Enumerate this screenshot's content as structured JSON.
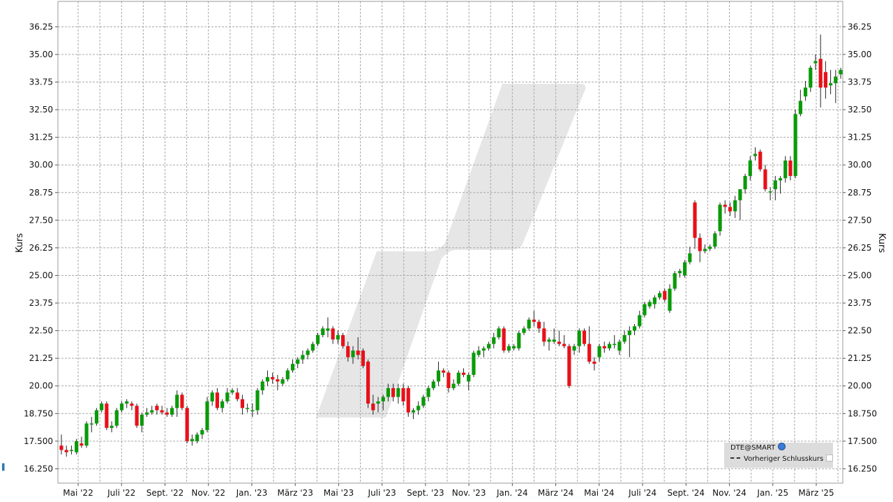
{
  "chart_data": {
    "type": "candlestick",
    "title": "",
    "ylabel": "Kurs",
    "ylabel_right": "Kurs",
    "ylim": [
      15.6,
      37.4
    ],
    "yticks": [
      "16.250",
      "17.500",
      "18.750",
      "20.00",
      "21.25",
      "22.50",
      "23.75",
      "25.00",
      "26.25",
      "27.50",
      "28.75",
      "30.00",
      "31.25",
      "32.50",
      "33.75",
      "35.00",
      "36.25"
    ],
    "xtick_labels": [
      "Mai '22",
      "Juli '22",
      "Sept. '22",
      "Nov. '22",
      "Jan. '23",
      "März '23",
      "Mai '23",
      "Juli '23",
      "Sept. '23",
      "Nov. '23",
      "Jan. '24",
      "März '24",
      "Mai '24",
      "Juli '24",
      "Sept. '24",
      "Nov. '24",
      "Jan. '25",
      "März '25"
    ],
    "grid": true,
    "colors": {
      "up": "#0a9a0a",
      "down": "#e8101a",
      "wick": "#222222",
      "grid": "#a8a8a8"
    },
    "legend": {
      "position": "bottom-right",
      "symbol": "DTE@SMART",
      "previous_close": "Vorheriger Schlusskurs"
    },
    "ohlc": [
      [
        17.3,
        17.8,
        16.9,
        17.1
      ],
      [
        17.1,
        17.3,
        16.8,
        17.0
      ],
      [
        17.1,
        17.3,
        16.9,
        17.1
      ],
      [
        17.0,
        17.6,
        16.9,
        17.5
      ],
      [
        17.4,
        17.7,
        17.2,
        17.3
      ],
      [
        17.3,
        18.4,
        17.2,
        18.3
      ],
      [
        18.3,
        18.6,
        17.9,
        18.3
      ],
      [
        18.3,
        19.0,
        18.2,
        18.9
      ],
      [
        18.9,
        19.3,
        18.8,
        19.2
      ],
      [
        19.2,
        19.3,
        18.0,
        18.1
      ],
      [
        18.1,
        18.4,
        17.9,
        18.2
      ],
      [
        18.2,
        19.0,
        18.1,
        18.9
      ],
      [
        18.9,
        19.3,
        18.8,
        19.2
      ],
      [
        19.2,
        19.4,
        19.0,
        19.3
      ],
      [
        19.2,
        19.3,
        18.9,
        19.1
      ],
      [
        19.1,
        19.2,
        18.1,
        18.2
      ],
      [
        18.2,
        18.8,
        17.9,
        18.7
      ],
      [
        18.7,
        19.0,
        18.6,
        18.8
      ],
      [
        18.8,
        19.1,
        18.7,
        18.9
      ],
      [
        19.1,
        19.2,
        18.7,
        18.9
      ],
      [
        18.9,
        19.1,
        18.7,
        18.8
      ],
      [
        18.8,
        19.0,
        18.6,
        18.7
      ],
      [
        18.7,
        19.1,
        18.6,
        19.0
      ],
      [
        19.0,
        19.8,
        18.6,
        19.6
      ],
      [
        19.6,
        19.7,
        18.9,
        19.0
      ],
      [
        19.0,
        19.1,
        17.4,
        17.5
      ],
      [
        17.5,
        17.8,
        17.3,
        17.6
      ],
      [
        17.5,
        17.9,
        17.4,
        17.8
      ],
      [
        17.8,
        18.1,
        17.6,
        18.0
      ],
      [
        18.0,
        19.5,
        17.9,
        19.3
      ],
      [
        19.3,
        19.8,
        19.1,
        19.7
      ],
      [
        19.7,
        19.9,
        18.9,
        19.0
      ],
      [
        19.0,
        19.4,
        18.8,
        19.3
      ],
      [
        19.3,
        19.9,
        19.2,
        19.7
      ],
      [
        19.7,
        19.9,
        19.6,
        19.8
      ],
      [
        19.7,
        19.9,
        19.3,
        19.4
      ],
      [
        19.4,
        19.6,
        18.7,
        19.0
      ],
      [
        19.0,
        19.2,
        18.8,
        19.0
      ],
      [
        18.9,
        19.2,
        18.6,
        18.9
      ],
      [
        18.9,
        19.9,
        18.7,
        19.8
      ],
      [
        19.8,
        20.3,
        19.6,
        20.2
      ],
      [
        20.2,
        20.7,
        20.0,
        20.4
      ],
      [
        20.4,
        20.6,
        20.1,
        20.3
      ],
      [
        20.3,
        20.5,
        19.8,
        20.2
      ],
      [
        20.1,
        20.4,
        20.0,
        20.3
      ],
      [
        20.3,
        20.8,
        20.2,
        20.7
      ],
      [
        20.7,
        21.2,
        20.6,
        21.0
      ],
      [
        21.0,
        21.3,
        20.8,
        21.2
      ],
      [
        21.2,
        21.6,
        21.0,
        21.4
      ],
      [
        21.4,
        21.7,
        21.2,
        21.6
      ],
      [
        21.6,
        22.0,
        21.5,
        21.9
      ],
      [
        21.9,
        22.4,
        21.8,
        22.3
      ],
      [
        22.3,
        22.7,
        22.2,
        22.6
      ],
      [
        22.5,
        23.1,
        22.2,
        22.6
      ],
      [
        22.6,
        22.7,
        21.9,
        22.1
      ],
      [
        22.1,
        22.5,
        21.9,
        22.3
      ],
      [
        22.3,
        22.4,
        21.7,
        21.8
      ],
      [
        21.8,
        22.0,
        21.1,
        21.3
      ],
      [
        21.3,
        21.8,
        21.0,
        21.6
      ],
      [
        21.6,
        22.2,
        21.2,
        21.4
      ],
      [
        21.6,
        21.7,
        20.8,
        20.9
      ],
      [
        21.1,
        21.2,
        19.0,
        19.2
      ],
      [
        19.2,
        19.6,
        18.7,
        18.9
      ],
      [
        19.2,
        19.5,
        18.8,
        19.3
      ],
      [
        19.3,
        19.6,
        18.9,
        19.5
      ],
      [
        19.5,
        20.1,
        19.3,
        19.9
      ],
      [
        19.9,
        20.1,
        19.3,
        19.5
      ],
      [
        19.5,
        20.1,
        19.2,
        19.9
      ],
      [
        19.9,
        20.1,
        19.1,
        19.3
      ],
      [
        19.9,
        20.0,
        18.6,
        18.8
      ],
      [
        18.8,
        19.0,
        18.5,
        18.9
      ],
      [
        18.9,
        19.3,
        18.7,
        19.1
      ],
      [
        19.1,
        19.6,
        19.0,
        19.5
      ],
      [
        19.5,
        20.0,
        19.3,
        19.9
      ],
      [
        19.9,
        20.3,
        19.8,
        20.2
      ],
      [
        20.2,
        21.1,
        20.0,
        20.7
      ],
      [
        20.7,
        20.8,
        20.4,
        20.6
      ],
      [
        20.6,
        20.7,
        19.7,
        19.9
      ],
      [
        19.9,
        20.3,
        19.8,
        20.1
      ],
      [
        20.1,
        20.7,
        20.0,
        20.6
      ],
      [
        20.6,
        20.8,
        20.4,
        20.5
      ],
      [
        20.2,
        20.6,
        19.8,
        20.5
      ],
      [
        20.5,
        21.6,
        20.4,
        21.5
      ],
      [
        21.4,
        21.8,
        21.3,
        21.6
      ],
      [
        21.6,
        21.8,
        21.3,
        21.7
      ],
      [
        21.7,
        22.0,
        21.6,
        21.9
      ],
      [
        21.9,
        22.4,
        21.7,
        22.2
      ],
      [
        22.2,
        22.7,
        22.1,
        22.6
      ],
      [
        22.6,
        22.7,
        21.5,
        21.6
      ],
      [
        21.6,
        21.9,
        21.5,
        21.8
      ],
      [
        21.7,
        21.9,
        21.6,
        21.8
      ],
      [
        21.7,
        22.5,
        21.6,
        22.4
      ],
      [
        22.4,
        22.7,
        22.3,
        22.6
      ],
      [
        22.6,
        23.1,
        22.5,
        23.0
      ],
      [
        23.0,
        23.4,
        22.7,
        22.9
      ],
      [
        22.9,
        23.0,
        22.4,
        22.6
      ],
      [
        22.6,
        22.9,
        21.8,
        22.0
      ],
      [
        22.0,
        22.2,
        21.6,
        22.1
      ],
      [
        22.0,
        22.6,
        21.9,
        22.1
      ],
      [
        22.0,
        22.5,
        21.8,
        21.9
      ],
      [
        21.9,
        22.3,
        21.7,
        21.8
      ],
      [
        21.8,
        21.9,
        19.9,
        20.0
      ],
      [
        21.6,
        21.9,
        21.4,
        21.8
      ],
      [
        21.8,
        22.6,
        21.5,
        22.5
      ],
      [
        22.5,
        22.6,
        21.8,
        21.9
      ],
      [
        21.9,
        22.7,
        21.0,
        21.1
      ],
      [
        21.1,
        21.3,
        20.7,
        21.0
      ],
      [
        21.3,
        21.9,
        21.1,
        21.8
      ],
      [
        21.8,
        22.0,
        21.5,
        21.7
      ],
      [
        21.7,
        22.0,
        21.6,
        21.9
      ],
      [
        21.9,
        22.3,
        21.7,
        21.9
      ],
      [
        21.6,
        22.1,
        21.4,
        22.0
      ],
      [
        22.0,
        22.5,
        21.9,
        22.3
      ],
      [
        22.3,
        22.7,
        21.3,
        22.5
      ],
      [
        22.5,
        22.8,
        22.3,
        22.7
      ],
      [
        22.7,
        23.4,
        22.6,
        23.2
      ],
      [
        23.2,
        23.8,
        23.1,
        23.7
      ],
      [
        23.6,
        23.9,
        23.5,
        23.8
      ],
      [
        23.7,
        24.1,
        23.5,
        24.0
      ],
      [
        24.0,
        24.3,
        23.9,
        24.2
      ],
      [
        24.3,
        24.4,
        23.8,
        23.9
      ],
      [
        23.4,
        24.6,
        23.3,
        24.4
      ],
      [
        24.4,
        25.2,
        24.3,
        25.1
      ],
      [
        25.1,
        25.3,
        24.9,
        25.2
      ],
      [
        25.0,
        25.7,
        24.9,
        25.6
      ],
      [
        25.6,
        26.3,
        25.5,
        26.0
      ],
      [
        28.3,
        28.4,
        26.2,
        26.7
      ],
      [
        26.7,
        26.9,
        25.6,
        26.1
      ],
      [
        26.1,
        26.4,
        26.0,
        26.2
      ],
      [
        26.2,
        26.4,
        26.1,
        26.3
      ],
      [
        26.3,
        27.0,
        26.2,
        26.9
      ],
      [
        27.0,
        28.3,
        26.8,
        28.2
      ],
      [
        28.2,
        28.4,
        27.8,
        28.1
      ],
      [
        28.1,
        28.3,
        27.7,
        27.9
      ],
      [
        27.9,
        28.6,
        27.6,
        28.4
      ],
      [
        28.4,
        28.9,
        27.5,
        28.9
      ],
      [
        28.9,
        29.6,
        28.7,
        29.5
      ],
      [
        29.5,
        30.4,
        29.3,
        30.2
      ],
      [
        30.4,
        30.8,
        30.2,
        30.5
      ],
      [
        30.6,
        30.7,
        29.7,
        29.8
      ],
      [
        29.8,
        30.0,
        28.8,
        28.9
      ],
      [
        28.8,
        29.0,
        28.4,
        28.8
      ],
      [
        28.9,
        29.5,
        28.4,
        29.3
      ],
      [
        29.3,
        29.5,
        28.7,
        29.4
      ],
      [
        29.4,
        30.4,
        29.2,
        30.2
      ],
      [
        30.2,
        30.4,
        29.3,
        29.5
      ],
      [
        29.5,
        32.5,
        29.4,
        32.3
      ],
      [
        32.3,
        33.4,
        32.2,
        32.9
      ],
      [
        33.1,
        33.8,
        32.9,
        33.5
      ],
      [
        33.5,
        34.5,
        33.3,
        34.4
      ],
      [
        34.6,
        35.0,
        34.3,
        34.7
      ],
      [
        34.8,
        35.9,
        32.6,
        33.5
      ],
      [
        34.2,
        34.7,
        33.0,
        33.5
      ],
      [
        33.6,
        34.3,
        33.2,
        33.7
      ],
      [
        33.7,
        34.3,
        32.8,
        34.0
      ],
      [
        34.1,
        34.4,
        33.9,
        34.3
      ]
    ]
  }
}
